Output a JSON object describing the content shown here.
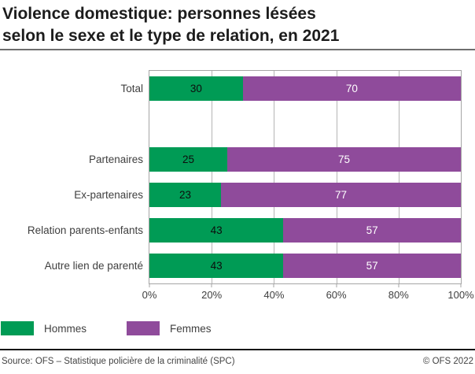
{
  "title": {
    "line1": "Violence domestique: personnes lésées",
    "line2": "selon le sexe et le type de relation, en 2021"
  },
  "chart_data": {
    "type": "bar",
    "orientation": "horizontal",
    "stacked": true,
    "unit": "%",
    "categories": [
      "Total",
      "Partenaires",
      "Ex-partenaires",
      "Relation parents-enfants",
      "Autre lien de parenté"
    ],
    "series": [
      {
        "name": "Hommes",
        "color": "#009b55",
        "values": [
          30,
          25,
          23,
          43,
          43
        ]
      },
      {
        "name": "Femmes",
        "color": "#8f4b9b",
        "values": [
          70,
          75,
          77,
          57,
          57
        ]
      }
    ],
    "value_label_colors": [
      "#0d0d0d",
      "#ffffff"
    ],
    "xlabel": "",
    "ylabel": "",
    "x_axis": {
      "min": 0,
      "max": 100,
      "tick_step": 20,
      "tick_labels": [
        "0%",
        "20%",
        "40%",
        "60%",
        "80%",
        "100%"
      ]
    },
    "gridlines": [
      20,
      40,
      60,
      80
    ],
    "gap_after_first_row": true,
    "legend_position": "bottom-left"
  },
  "legend": {
    "items": [
      {
        "label": "Hommes",
        "color": "#009b55"
      },
      {
        "label": "Femmes",
        "color": "#8f4b9b"
      }
    ]
  },
  "footer": {
    "source": "Source: OFS – Statistique policière de la criminalité (SPC)",
    "copyright": "© OFS 2022"
  }
}
